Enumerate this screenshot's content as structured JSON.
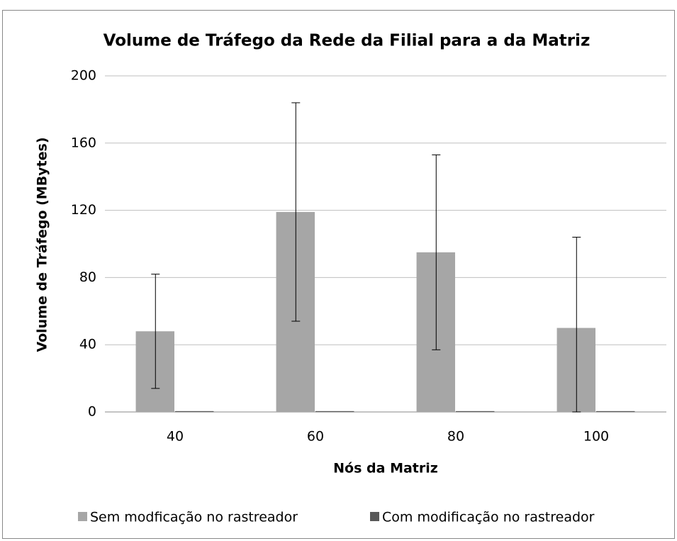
{
  "chart_data": {
    "type": "bar",
    "title": "Volume de Tráfego da Rede da Filial para a da Matriz",
    "x_label": "Nós da Matriz",
    "y_label": "Volume de Tráfego (MBytes)",
    "categories": [
      "40",
      "60",
      "80",
      "100"
    ],
    "series": [
      {
        "name": "Sem modficação no rastreador",
        "color": "#a6a6a6",
        "values": [
          48,
          119,
          95,
          50
        ],
        "errors": [
          34,
          65,
          58,
          54
        ]
      },
      {
        "name": "Com modificação no rastreador",
        "color": "#595959",
        "values": [
          0.5,
          0.5,
          0.5,
          0.5
        ]
      }
    ],
    "ylim": [
      0,
      200
    ],
    "yticks": [
      0,
      40,
      80,
      120,
      160,
      200
    ],
    "grid": true,
    "legend": "bottom"
  }
}
